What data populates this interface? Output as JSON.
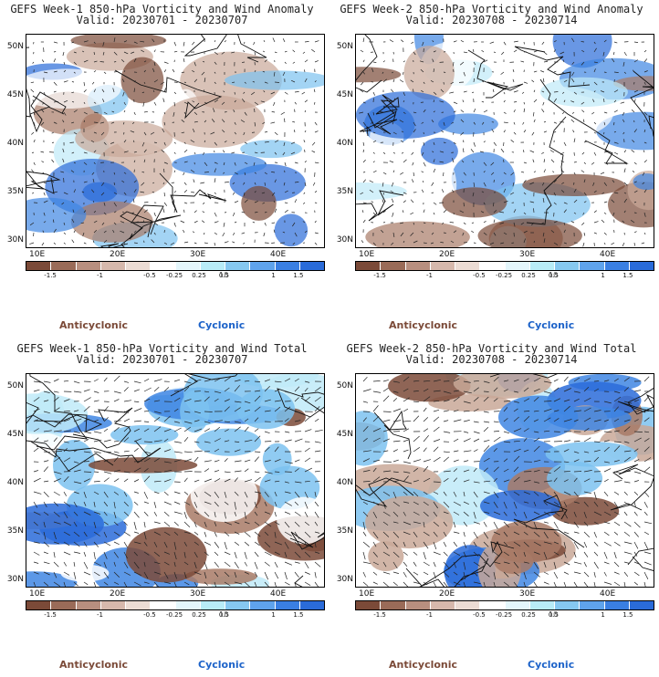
{
  "panels": [
    {
      "title_line1": "GEFS Week-1 850-hPa Vorticity and Wind Anomaly",
      "title_line2": "Valid: 20230701 - 20230707"
    },
    {
      "title_line1": "GEFS Week-2 850-hPa Vorticity and Wind Anomaly",
      "title_line2": "Valid: 20230708 - 20230714"
    },
    {
      "title_line1": "GEFS Week-1 850-hPa Vorticity and Wind Total",
      "title_line2": "Valid: 20230701 - 20230707"
    },
    {
      "title_line1": "GEFS Week-2 850-hPa Vorticity and Wind Total",
      "title_line2": "Valid: 20230708 - 20230714"
    }
  ],
  "lat_labels": [
    "50N",
    "45N",
    "40N",
    "35N",
    "30N"
  ],
  "lon_labels": [
    "10E",
    "20E",
    "30E",
    "40E"
  ],
  "colorbar": {
    "labels": [
      "-1.5",
      "-1",
      "-0.5",
      "-0.25",
      "0.25",
      "0.5",
      "1",
      "1.5"
    ],
    "unit": "10",
    "colors": [
      "#7b4a38",
      "#9a6b58",
      "#b88f7f",
      "#d6b8ac",
      "#ecdcd4",
      "#ffffff",
      "#e4f6fb",
      "#b8ecf7",
      "#86c8f0",
      "#5fa3ec",
      "#3a7fe2",
      "#2a6bd9"
    ]
  },
  "legend": {
    "anticyclonic": "Anticyclonic",
    "cyclonic": "Cyclonic"
  }
}
